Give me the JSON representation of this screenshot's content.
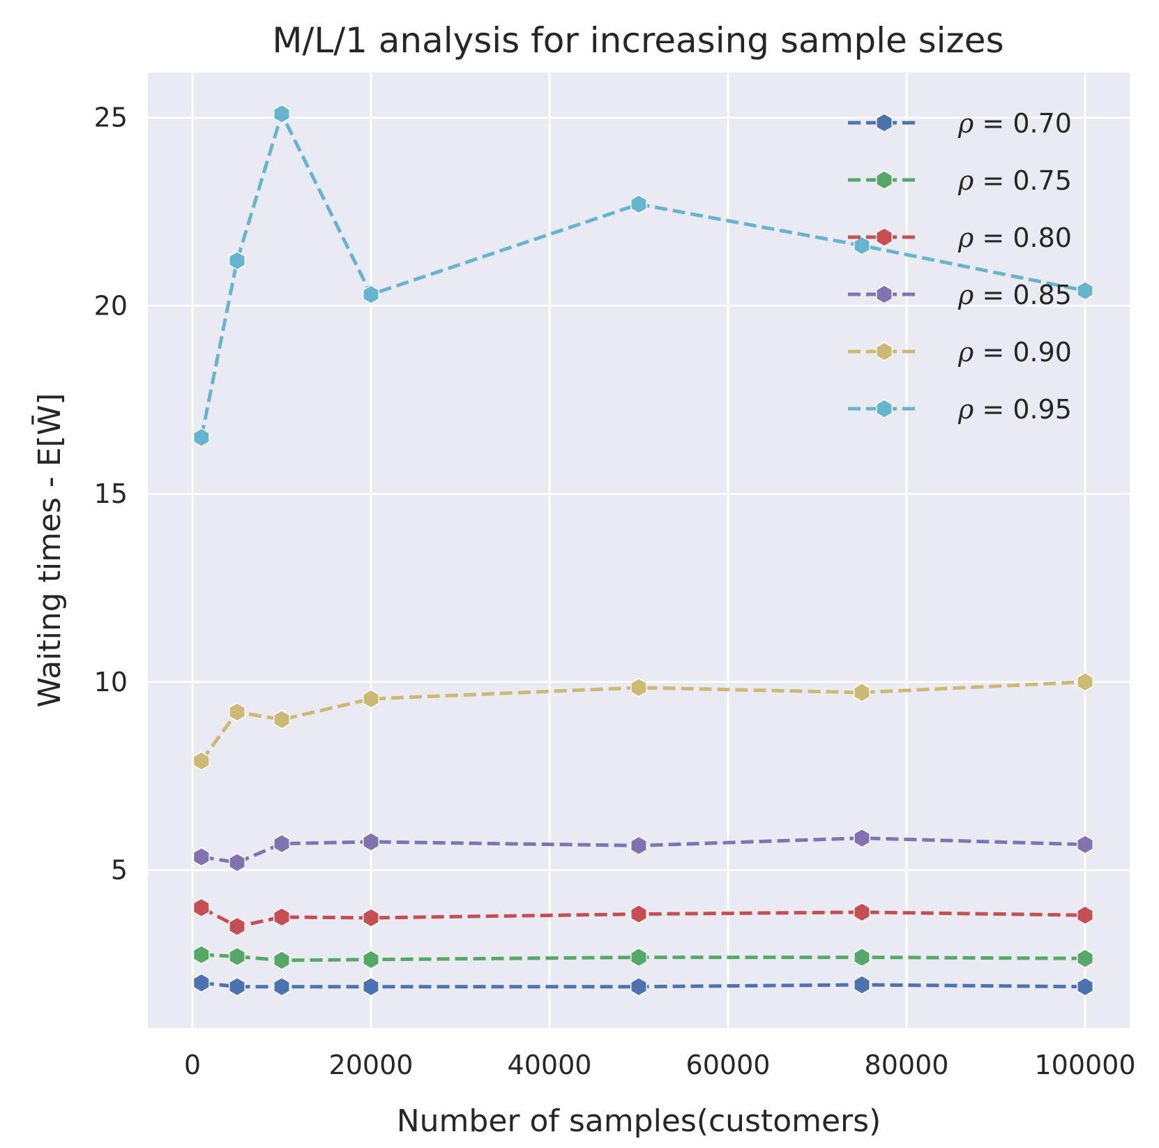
{
  "chart_data": {
    "type": "line",
    "title": "M/L/1 analysis for increasing sample sizes",
    "xlabel": "Number of samples(customers)",
    "ylabel": "Waiting times - E[W̄]",
    "xlim": [
      -5000,
      105000
    ],
    "ylim": [
      0.8,
      26.2
    ],
    "xticks": [
      0,
      20000,
      40000,
      60000,
      80000,
      100000
    ],
    "yticks": [
      5,
      10,
      15,
      20,
      25
    ],
    "x": [
      1000,
      5000,
      10000,
      20000,
      50000,
      75000,
      100000
    ],
    "grid": true,
    "legend_position": "top-right",
    "series": [
      {
        "name": "ρ = 0.70",
        "legend_symbol": "ρ",
        "legend_value": " = 0.70",
        "color": "#4c72b0",
        "values": [
          2.0,
          1.9,
          1.9,
          1.9,
          1.9,
          1.95,
          1.9
        ]
      },
      {
        "name": "ρ = 0.75",
        "legend_symbol": "ρ",
        "legend_value": " = 0.75",
        "color": "#55a868",
        "values": [
          2.75,
          2.7,
          2.6,
          2.62,
          2.68,
          2.68,
          2.65
        ]
      },
      {
        "name": "ρ = 0.80",
        "legend_symbol": "ρ",
        "legend_value": " = 0.80",
        "color": "#c44e52",
        "values": [
          4.0,
          3.5,
          3.75,
          3.73,
          3.83,
          3.88,
          3.8
        ]
      },
      {
        "name": "ρ = 0.85",
        "legend_symbol": "ρ",
        "legend_value": " = 0.85",
        "color": "#8172b2",
        "values": [
          5.35,
          5.2,
          5.7,
          5.75,
          5.65,
          5.85,
          5.68
        ]
      },
      {
        "name": "ρ = 0.90",
        "legend_symbol": "ρ",
        "legend_value": " = 0.90",
        "color": "#ccb974",
        "values": [
          7.9,
          9.2,
          9.0,
          9.55,
          9.85,
          9.72,
          10.0
        ]
      },
      {
        "name": "ρ = 0.95",
        "legend_symbol": "ρ",
        "legend_value": " = 0.95",
        "color": "#64b5cd",
        "values": [
          16.5,
          21.2,
          25.1,
          20.3,
          22.7,
          21.6,
          20.4
        ]
      }
    ]
  }
}
